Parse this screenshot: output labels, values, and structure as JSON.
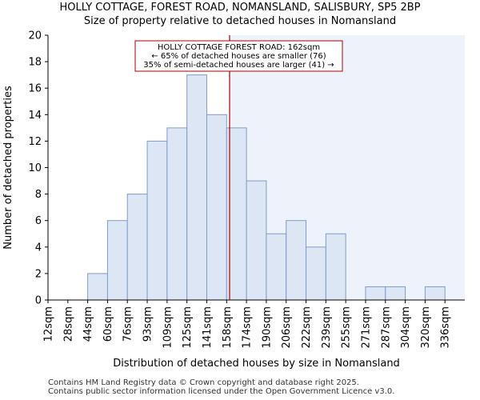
{
  "header": {
    "title": "HOLLY COTTAGE, FOREST ROAD, NOMANSLAND, SALISBURY, SP5 2BP",
    "subtitle": "Size of property relative to detached houses in Nomansland"
  },
  "footer": {
    "line1": "Contains HM Land Registry data © Crown copyright and database right 2025.",
    "line2": "Contains public sector information licensed under the Open Government Licence v3.0."
  },
  "colors": {
    "bar_fill": "#dce6f5",
    "bar_stroke": "#7f9cc8",
    "highlight_region": "#eef2fb",
    "marker_line": "#aa0000",
    "annotation_border": "#aa0000"
  },
  "chart_data": {
    "type": "bar",
    "title": "HOLLY COTTAGE, FOREST ROAD, NOMANSLAND, SALISBURY, SP5 2BP",
    "subtitle": "Size of property relative to detached houses in Nomansland",
    "xlabel": "Distribution of detached houses by size in Nomansland",
    "ylabel": "Number of detached properties",
    "categories": [
      "12sqm",
      "28sqm",
      "44sqm",
      "60sqm",
      "76sqm",
      "93sqm",
      "109sqm",
      "125sqm",
      "141sqm",
      "158sqm",
      "174sqm",
      "190sqm",
      "206sqm",
      "222sqm",
      "239sqm",
      "255sqm",
      "271sqm",
      "287sqm",
      "304sqm",
      "320sqm",
      "336sqm"
    ],
    "values": [
      0,
      0,
      2,
      6,
      8,
      12,
      13,
      17,
      14,
      13,
      9,
      5,
      6,
      4,
      5,
      0,
      1,
      1,
      0,
      1,
      0
    ],
    "ylim": [
      0,
      20
    ],
    "yticks": [
      0,
      2,
      4,
      6,
      8,
      10,
      12,
      14,
      16,
      18,
      20
    ],
    "grid": false,
    "marker_value_sqm": 162,
    "annotation": {
      "line1": "HOLLY COTTAGE FOREST ROAD: 162sqm",
      "line2": "← 65% of detached houses are smaller (76)",
      "line3": "35% of semi-detached houses are larger (41) →"
    }
  }
}
